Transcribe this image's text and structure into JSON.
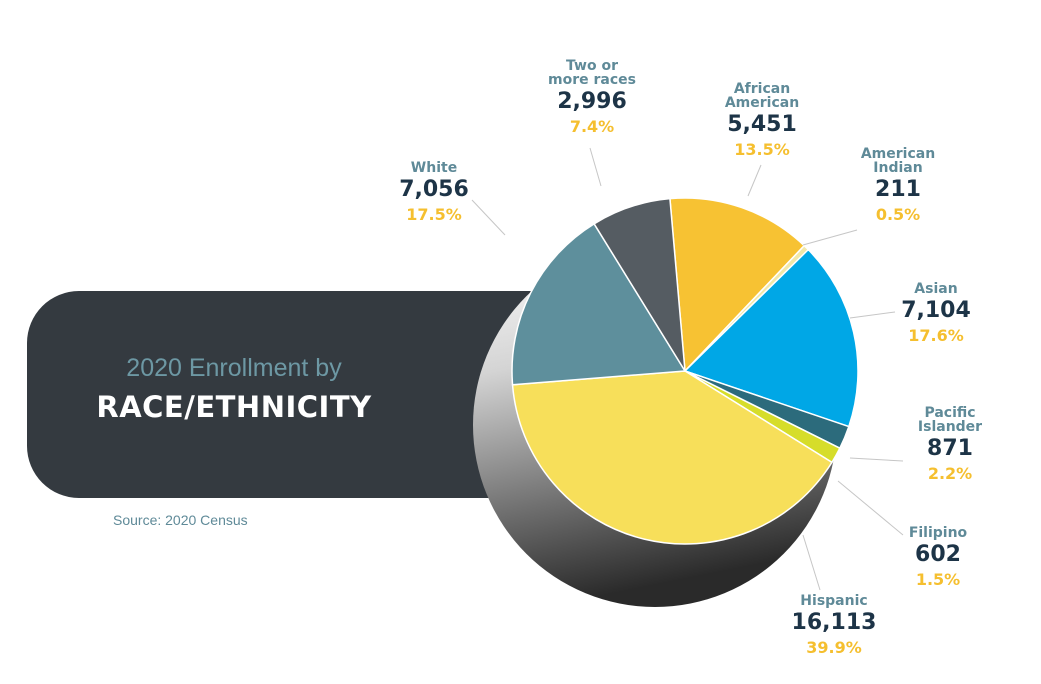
{
  "title": {
    "subtitle": "2020 Enrollment by",
    "main": "RACE/ETHNICITY"
  },
  "source": "Source: 2020 Census",
  "colors": {
    "white": "#5e8f9c",
    "two_or_more": "#555c62",
    "african_american": "#f7c233",
    "american_indian": "#f2e8a8",
    "asian": "#00a7e6",
    "pacific_islander": "#2c6b7c",
    "filipino": "#d6dd2a",
    "hispanic": "#f7df5a",
    "label_name": "#5f8a98",
    "label_count": "#1d3447",
    "label_pct": "#f5bf2f",
    "panel": "#343a40"
  },
  "chart_data": {
    "type": "pie",
    "start_angle_deg": -95,
    "slices": [
      {
        "label": "African\nAmerican",
        "value": 5451,
        "value_label": "5,451",
        "percent": "13.5%",
        "color": "#f7c233"
      },
      {
        "label": "American\nIndian",
        "value": 211,
        "value_label": "211",
        "percent": "0.5%",
        "color": "#f2e8a8"
      },
      {
        "label": "Asian",
        "value": 7104,
        "value_label": "7,104",
        "percent": "17.6%",
        "color": "#00a7e6"
      },
      {
        "label": "Pacific\nIslander",
        "value": 871,
        "value_label": "871",
        "percent": "2.2%",
        "color": "#2c6b7c"
      },
      {
        "label": "Filipino",
        "value": 602,
        "value_label": "602",
        "percent": "1.5%",
        "color": "#d6dd2a"
      },
      {
        "label": "Hispanic",
        "value": 16113,
        "value_label": "16,113",
        "percent": "39.9%",
        "color": "#f7df5a"
      },
      {
        "label": "White",
        "value": 7056,
        "value_label": "7,056",
        "percent": "17.5%",
        "color": "#5e8f9c"
      },
      {
        "label": "Two or\nmore races",
        "value": 2996,
        "value_label": "2,996",
        "percent": "7.4%",
        "color": "#555c62"
      }
    ]
  }
}
